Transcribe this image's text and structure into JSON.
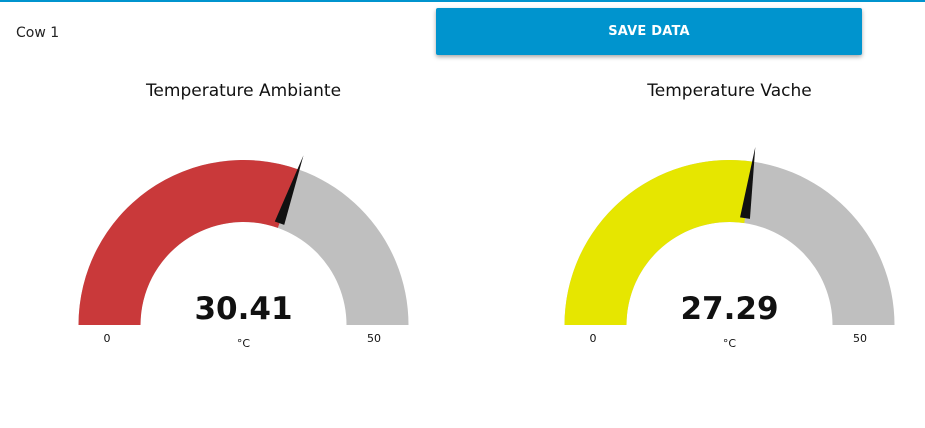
{
  "header": {
    "device_label": "Cow 1",
    "save_label": "SAVE DATA"
  },
  "colors": {
    "accent": "#0094ce",
    "gauge_background": "#bfbfbf",
    "needle": "#111111"
  },
  "gauges": [
    {
      "title": "Temperature Ambiante",
      "value": 30.41,
      "value_text": "30.41",
      "unit": "°C",
      "min": 0,
      "max": 50,
      "min_label": "0",
      "max_label": "50",
      "fill_color": "#c9393a"
    },
    {
      "title": "Temperature Vache",
      "value": 27.29,
      "value_text": "27.29",
      "unit": "°C",
      "min": 0,
      "max": 50,
      "min_label": "0",
      "max_label": "50",
      "fill_color": "#e6e600"
    }
  ]
}
